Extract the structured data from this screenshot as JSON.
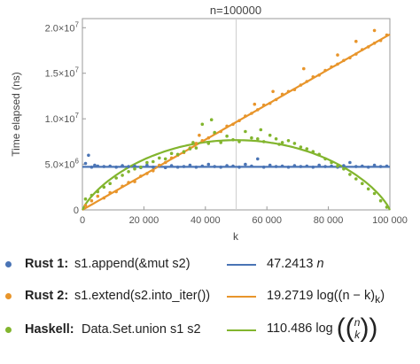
{
  "chart_data": {
    "type": "scatter",
    "title": "n=100000",
    "xlabel": "k",
    "ylabel": "Time elapsed (ns)",
    "xlim": [
      0,
      100000
    ],
    "ylim": [
      0,
      21000000
    ],
    "x_ticks": [
      {
        "value": 0,
        "label": "0"
      },
      {
        "value": 20000,
        "label": "20 000"
      },
      {
        "value": 40000,
        "label": "40 000"
      },
      {
        "value": 60000,
        "label": "60 000"
      },
      {
        "value": 80000,
        "label": "80 000"
      },
      {
        "value": 100000,
        "label": "100 000"
      }
    ],
    "y_ticks": [
      {
        "value": 0,
        "label": "0",
        "exp": ""
      },
      {
        "value": 5000000,
        "label": "5.0×10",
        "exp": "6"
      },
      {
        "value": 10000000,
        "label": "1.0×10",
        "exp": "7"
      },
      {
        "value": 15000000,
        "label": "1.5×10",
        "exp": "7"
      },
      {
        "value": 20000000,
        "label": "2.0×10",
        "exp": "7"
      }
    ],
    "vertical_marker_x": 50000,
    "grid": false,
    "series": [
      {
        "name": "Rust 1",
        "color": "#4a74b5",
        "fit": {
          "type": "constant",
          "value": 4724130
        },
        "points": [
          [
            1000,
            5100000
          ],
          [
            2000,
            6000000
          ],
          [
            3000,
            4700000
          ],
          [
            4000,
            4900000
          ],
          [
            5000,
            4800000
          ],
          [
            7000,
            4750000
          ],
          [
            9000,
            4800000
          ],
          [
            11000,
            4700000
          ],
          [
            13000,
            4850000
          ],
          [
            15000,
            4750000
          ],
          [
            17000,
            4800000
          ],
          [
            19000,
            4650000
          ],
          [
            21000,
            4900000
          ],
          [
            23000,
            4700000
          ],
          [
            25000,
            4800000
          ],
          [
            27000,
            4650000
          ],
          [
            29000,
            4850000
          ],
          [
            31000,
            4700000
          ],
          [
            33000,
            4750000
          ],
          [
            35000,
            4900000
          ],
          [
            37000,
            4700000
          ],
          [
            39000,
            4800000
          ],
          [
            41000,
            5000000
          ],
          [
            43000,
            4750000
          ],
          [
            45000,
            4700000
          ],
          [
            47000,
            4850000
          ],
          [
            49000,
            4800000
          ],
          [
            51000,
            4700000
          ],
          [
            53000,
            5000000
          ],
          [
            55000,
            4800000
          ],
          [
            57000,
            5600000
          ],
          [
            59000,
            4700000
          ],
          [
            61000,
            4900000
          ],
          [
            63000,
            4750000
          ],
          [
            65000,
            4800000
          ],
          [
            67000,
            4700000
          ],
          [
            69000,
            4850000
          ],
          [
            71000,
            4750000
          ],
          [
            73000,
            4800000
          ],
          [
            75000,
            4700000
          ],
          [
            77000,
            4900000
          ],
          [
            79000,
            4750000
          ],
          [
            81000,
            4800000
          ],
          [
            83000,
            4700000
          ],
          [
            85000,
            4850000
          ],
          [
            87000,
            5200000
          ],
          [
            89000,
            4750000
          ],
          [
            91000,
            4800000
          ],
          [
            93000,
            4700000
          ],
          [
            95000,
            4900000
          ],
          [
            97000,
            4750000
          ],
          [
            99000,
            4800000
          ]
        ]
      },
      {
        "name": "Rust 2",
        "color": "#e8952b",
        "fit": {
          "type": "linear",
          "slope": 192.719
        },
        "points": [
          [
            1000,
            500000
          ],
          [
            3000,
            1000000
          ],
          [
            5000,
            1500000
          ],
          [
            7000,
            1300000
          ],
          [
            9000,
            1900000
          ],
          [
            11000,
            2000000
          ],
          [
            13000,
            2600000
          ],
          [
            15000,
            3000000
          ],
          [
            17000,
            3100000
          ],
          [
            19000,
            3700000
          ],
          [
            21000,
            4000000
          ],
          [
            23000,
            4300000
          ],
          [
            25000,
            4900000
          ],
          [
            27000,
            5200000
          ],
          [
            29000,
            5700000
          ],
          [
            31000,
            6000000
          ],
          [
            33000,
            6300000
          ],
          [
            35000,
            6800000
          ],
          [
            37000,
            7300000
          ],
          [
            39000,
            7600000
          ],
          [
            41000,
            7900000
          ],
          [
            43000,
            8400000
          ],
          [
            45000,
            8600000
          ],
          [
            47000,
            9200000
          ],
          [
            49000,
            9400000
          ],
          [
            51000,
            9800000
          ],
          [
            53000,
            10300000
          ],
          [
            55000,
            10600000
          ],
          [
            57000,
            11000000
          ],
          [
            59000,
            11500000
          ],
          [
            61000,
            11700000
          ],
          [
            63000,
            12100000
          ],
          [
            65000,
            12700000
          ],
          [
            67000,
            13000000
          ],
          [
            69000,
            13200000
          ],
          [
            71000,
            13700000
          ],
          [
            73000,
            14100000
          ],
          [
            75000,
            14600000
          ],
          [
            77000,
            14800000
          ],
          [
            79000,
            15300000
          ],
          [
            81000,
            15700000
          ],
          [
            83000,
            16000000
          ],
          [
            85000,
            16400000
          ],
          [
            87000,
            16700000
          ],
          [
            89000,
            17100000
          ],
          [
            91000,
            17600000
          ],
          [
            93000,
            17900000
          ],
          [
            95000,
            18300000
          ],
          [
            97000,
            18600000
          ],
          [
            99000,
            19200000
          ],
          [
            72000,
            15500000
          ],
          [
            83000,
            17000000
          ],
          [
            95000,
            19700000
          ],
          [
            62000,
            13000000
          ],
          [
            38000,
            8200000
          ],
          [
            56000,
            11600000
          ],
          [
            89000,
            18500000
          ]
        ]
      },
      {
        "name": "Haskell",
        "color": "#82b52e",
        "fit": {
          "type": "binomial",
          "coefficient": 110.486
        },
        "points": [
          [
            1000,
            1200000
          ],
          [
            3000,
            1600000
          ],
          [
            5000,
            2000000
          ],
          [
            7000,
            2500000
          ],
          [
            9000,
            2900000
          ],
          [
            11000,
            3500000
          ],
          [
            13000,
            3800000
          ],
          [
            15000,
            4200000
          ],
          [
            17000,
            4500000
          ],
          [
            19000,
            4700000
          ],
          [
            21000,
            5200000
          ],
          [
            23000,
            5300000
          ],
          [
            25000,
            5700000
          ],
          [
            27000,
            5600000
          ],
          [
            29000,
            6200000
          ],
          [
            31000,
            6100000
          ],
          [
            33000,
            6400000
          ],
          [
            35000,
            6700000
          ],
          [
            37000,
            6800000
          ],
          [
            39000,
            9400000
          ],
          [
            41000,
            7300000
          ],
          [
            43000,
            8500000
          ],
          [
            45000,
            7400000
          ],
          [
            47000,
            8100000
          ],
          [
            49000,
            7700000
          ],
          [
            51000,
            7500000
          ],
          [
            53000,
            8600000
          ],
          [
            55000,
            7900000
          ],
          [
            57000,
            7800000
          ],
          [
            59000,
            7500000
          ],
          [
            61000,
            8200000
          ],
          [
            63000,
            7800000
          ],
          [
            65000,
            7400000
          ],
          [
            67000,
            7600000
          ],
          [
            69000,
            7300000
          ],
          [
            71000,
            6900000
          ],
          [
            73000,
            6700000
          ],
          [
            75000,
            6400000
          ],
          [
            77000,
            6100000
          ],
          [
            79000,
            5600000
          ],
          [
            81000,
            5200000
          ],
          [
            83000,
            4800000
          ],
          [
            85000,
            4500000
          ],
          [
            87000,
            3900000
          ],
          [
            89000,
            3400000
          ],
          [
            91000,
            2900000
          ],
          [
            93000,
            2300000
          ],
          [
            95000,
            1800000
          ],
          [
            97000,
            1000000
          ],
          [
            99000,
            300000
          ],
          [
            42000,
            9900000
          ],
          [
            58000,
            8800000
          ],
          [
            36000,
            7400000
          ],
          [
            64000,
            7200000
          ]
        ]
      }
    ]
  },
  "legend": [
    {
      "name": "Rust 1:",
      "desc": "s1.append(&mut s2)",
      "fit_text": "47.2413",
      "fit_var": "n",
      "color": "#4a74b5"
    },
    {
      "name": "Rust 2:",
      "desc": "s1.extend(s2.into_iter())",
      "fit_text": "19.2719",
      "fit_tail": " log((n − k)",
      "fit_sub": "k",
      "fit_end": ")",
      "color": "#e8952b"
    },
    {
      "name": "Haskell:",
      "desc": "Data.Set.union s1 s2",
      "fit_text": "110.486",
      "fit_tail": " log",
      "binom_top": "n",
      "binom_bottom": "k",
      "color": "#82b52e"
    }
  ]
}
